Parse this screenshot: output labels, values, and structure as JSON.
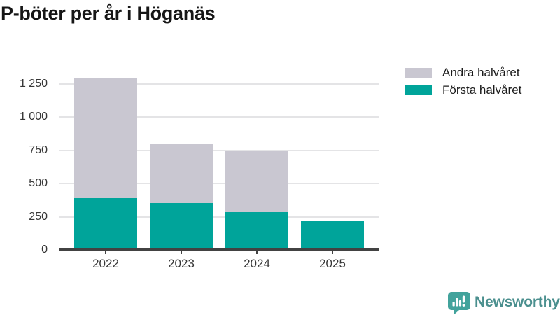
{
  "page": {
    "title": "P-böter per år i Höganäs"
  },
  "legend": {
    "items": [
      {
        "label": "Andra halvåret",
        "color": "#c9c7d1"
      },
      {
        "label": "Första halvåret",
        "color": "#00a49a"
      }
    ]
  },
  "footer": {
    "brand": "Newsworthy",
    "brand_color": "#4a8f8e",
    "icon_color": "#42a39c"
  },
  "chart_data": {
    "type": "bar",
    "stacked": true,
    "title": "P-böter per år i Höganäs",
    "categories": [
      "2022",
      "2023",
      "2024",
      "2025"
    ],
    "series": [
      {
        "name": "Första halvåret",
        "color": "#00a49a",
        "values": [
          390,
          355,
          285,
          220
        ]
      },
      {
        "name": "Andra halvåret",
        "color": "#c9c7d1",
        "values": [
          905,
          440,
          465,
          0
        ]
      }
    ],
    "totals": [
      1295,
      795,
      750,
      220
    ],
    "yticks": [
      {
        "value": 0,
        "label": "0"
      },
      {
        "value": 250,
        "label": "250"
      },
      {
        "value": 500,
        "label": "500"
      },
      {
        "value": 750,
        "label": "750"
      },
      {
        "value": 1000,
        "label": "1 000"
      },
      {
        "value": 1250,
        "label": "1 250"
      }
    ],
    "ylim": [
      0,
      1375
    ],
    "grid": true,
    "legend_position": "top-right",
    "axis_color": "#424242",
    "gridline_color": "#e4e4e6"
  }
}
